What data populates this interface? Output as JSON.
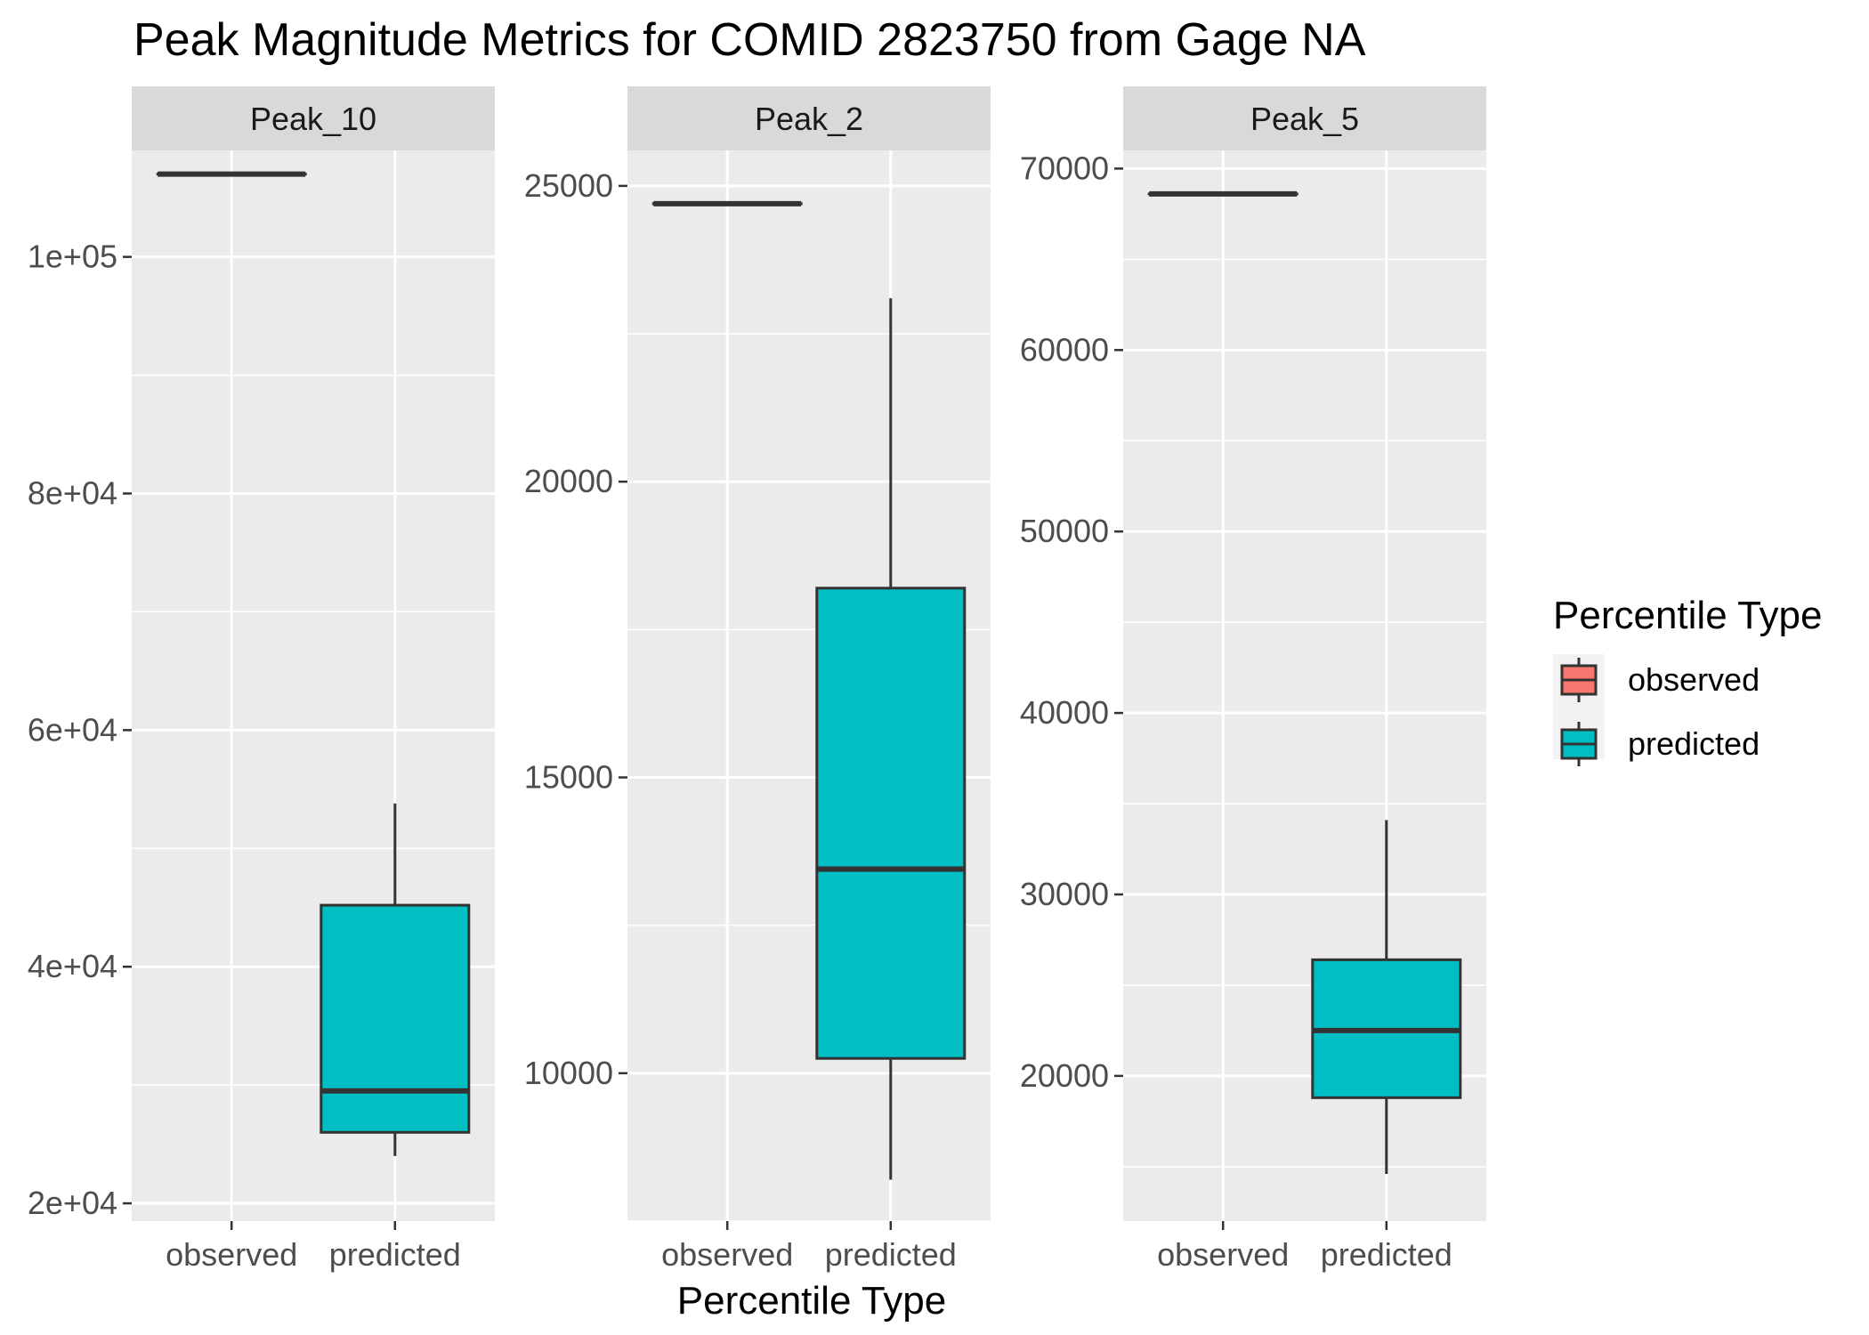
{
  "chart_data": {
    "type": "boxplot",
    "title": "Peak Magnitude Metrics for COMID 2823750 from Gage NA",
    "xlabel": "Percentile Type",
    "ylabel": "",
    "categories": [
      "observed",
      "predicted"
    ],
    "legend": {
      "title": "Percentile Type",
      "position": "right",
      "entries": [
        {
          "label": "observed",
          "color": "#F8766D"
        },
        {
          "label": "predicted",
          "color": "#00BFC4"
        }
      ]
    },
    "grid": true,
    "facets": [
      {
        "label": "Peak_10",
        "ylim": [
          18500,
          109000
        ],
        "y_ticks": [
          20000,
          40000,
          60000,
          80000,
          100000
        ],
        "y_tick_labels": [
          "2e+04",
          "4e+04",
          "6e+04",
          "8e+04",
          "1e+05"
        ],
        "boxes": [
          {
            "category": "observed",
            "min": 107000,
            "q1": 107000,
            "median": 107000,
            "q3": 107000,
            "max": 107000
          },
          {
            "category": "predicted",
            "min": 24000,
            "q1": 26000,
            "median": 29500,
            "q3": 45200,
            "max": 53800
          }
        ]
      },
      {
        "label": "Peak_2",
        "ylim": [
          7500,
          25600
        ],
        "y_ticks": [
          10000,
          15000,
          20000,
          25000
        ],
        "y_tick_labels": [
          "10000",
          "15000",
          "20000",
          "25000"
        ],
        "boxes": [
          {
            "category": "observed",
            "min": 24700,
            "q1": 24700,
            "median": 24700,
            "q3": 24700,
            "max": 24700
          },
          {
            "category": "predicted",
            "min": 8200,
            "q1": 10250,
            "median": 13450,
            "q3": 18200,
            "max": 23100
          }
        ]
      },
      {
        "label": "Peak_5",
        "ylim": [
          12000,
          71000
        ],
        "y_ticks": [
          20000,
          30000,
          40000,
          50000,
          60000,
          70000
        ],
        "y_tick_labels": [
          "20000",
          "30000",
          "40000",
          "50000",
          "60000",
          "70000"
        ],
        "boxes": [
          {
            "category": "observed",
            "min": 68600,
            "q1": 68600,
            "median": 68600,
            "q3": 68600,
            "max": 68600
          },
          {
            "category": "predicted",
            "min": 14600,
            "q1": 18800,
            "median": 22500,
            "q3": 26400,
            "max": 34100
          }
        ]
      }
    ]
  }
}
